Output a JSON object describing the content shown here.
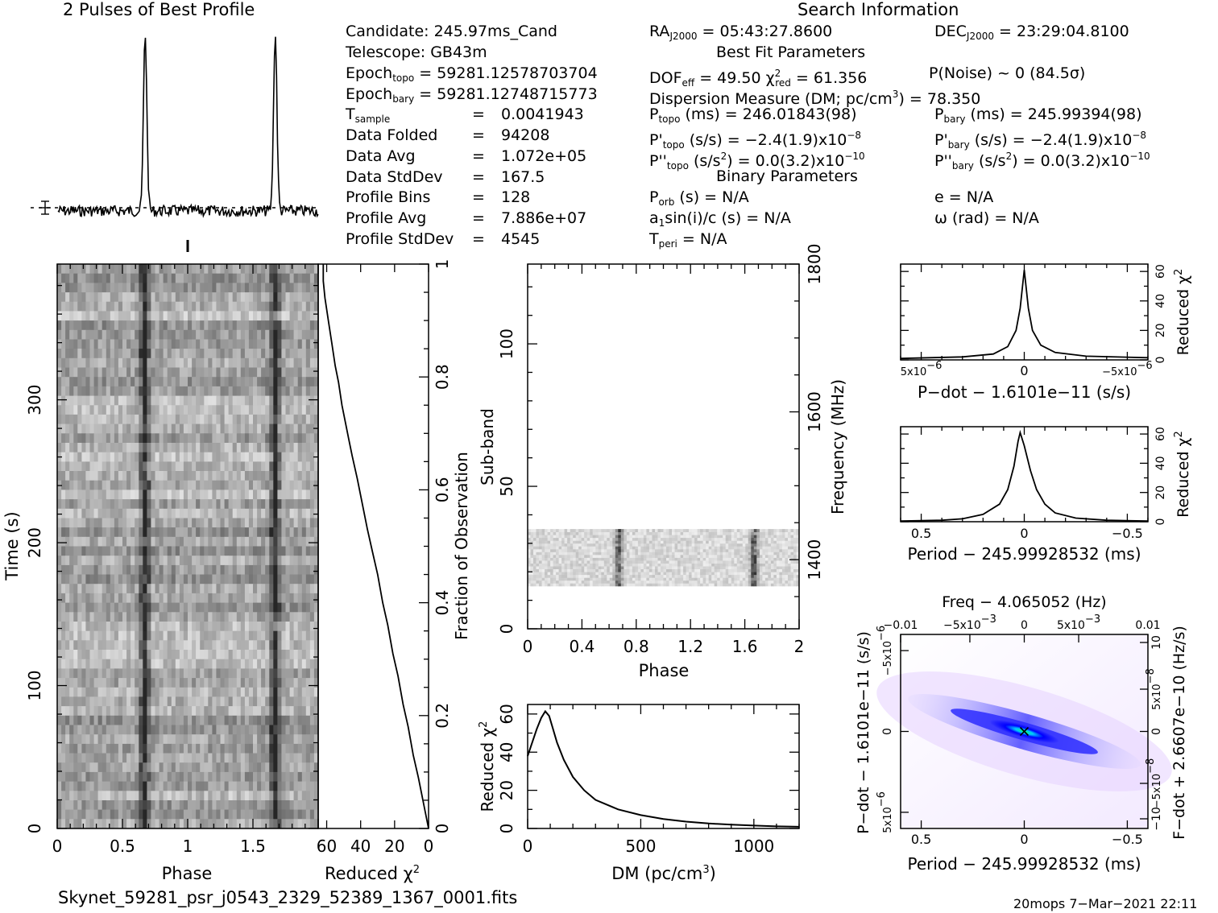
{
  "titles": {
    "profile": "2 Pulses of Best Profile",
    "search": "Search Information",
    "best_fit": "Best Fit Parameters",
    "binary": "Binary Parameters"
  },
  "header": {
    "candidate": "Candidate:  245.97ms_Cand",
    "telescope": "Telescope:  GB43m",
    "epoch_topo_l": "Epoch",
    "epoch_topo_s": "topo",
    "epoch_topo_v": " = 59281.12578703704",
    "epoch_bary_l": "Epoch",
    "epoch_bary_s": "bary",
    "epoch_bary_v": " = 59281.12748715773",
    "tsamp_l": "T",
    "tsamp_s": "sample",
    "tsamp_eq": "=",
    "tsamp_v": "0.0041943",
    "folded_l": "Data Folded",
    "folded_v": "94208",
    "davg_l": "Data Avg",
    "davg_v": "1.072e+05",
    "dstd_l": "Data StdDev",
    "dstd_v": "167.5",
    "bins_l": "Profile Bins",
    "bins_v": "128",
    "pavg_l": "Profile Avg",
    "pavg_v": "7.886e+07",
    "pstd_l": "Profile StdDev",
    "pstd_v": "4545",
    "eq": "=",
    "ra_l": "RA",
    "ra_s": "J2000",
    "ra_v": " = 05:43:27.8600",
    "dec_l": "DEC",
    "dec_s": "J2000",
    "dec_v": " = 23:29:04.8100",
    "dof_l": "DOF",
    "dof_s": "eff",
    "dof_v": " = 49.50  ",
    "chi_l": "χ",
    "chi_sup": "2",
    "chi_s": "red",
    "chi_v": " = 61.356",
    "pnoise": "P(Noise) ~ 0   (84.5σ)",
    "dm_line_a": "Dispersion Measure (DM; pc/cm",
    "dm_line_sup": "3",
    "dm_line_b": ") = 78.350",
    "ptopo_l": "P",
    "ptopo_s": "topo",
    "ptopo_v": " (ms) =  246.01843(98)",
    "pbary_l": "P",
    "pbary_s": "bary",
    "pbary_v": " (ms) =  245.99394(98)",
    "pdtopo_l": "P'",
    "pdtopo_s": "topo",
    "pdtopo_v": " (s/s) = −2.4(1.9)x10",
    "pdtopo_e": "−8",
    "pdbary_l": "P'",
    "pdbary_s": "bary",
    "pdbary_v": " (s/s) = −2.4(1.9)x10",
    "pdbary_e": "−8",
    "pddtopo_l": "P''",
    "pddtopo_s": "topo",
    "pddtopo_v": " (s/s",
    "pddtopo_sq": "2",
    "pddtopo_w": ") = 0.0(3.2)x10",
    "pddtopo_e": "−10",
    "pddbary_l": "P''",
    "pddbary_s": "bary",
    "pddbary_v": " (s/s",
    "pddbary_sq": "2",
    "pddbary_w": ") = 0.0(3.2)x10",
    "pddbary_e": "−10",
    "porb_l": "P",
    "porb_s": "orb",
    "porb_v": " (s) = N/A",
    "ecc": "e = N/A",
    "a1_a": "a",
    "a1_s": "1",
    "a1_b": "sin(i)/c (s) = N/A",
    "omega": "ω (rad) = N/A",
    "tperi_l": "T",
    "tperi_s": "peri",
    "tperi_v": " = N/A"
  },
  "footer": {
    "filename": "Skynet_59281_psr_j0543_2329_52389_1367_0001.fits",
    "stamp": "20mops  7−Mar−2021 22:11"
  },
  "colors": {
    "ink": "#000000",
    "bg": "#ffffff",
    "grey_min": "#ffffff",
    "grey_max": "#000000",
    "map_low": "#ffffff",
    "map_mid": "#0000ff",
    "map_high": "#00ff00"
  },
  "chart_data": [
    {
      "id": "profile",
      "type": "line",
      "title": "2 Pulses of Best Profile",
      "x_range": [
        0,
        2
      ],
      "peaks_at_phase": [
        0.67,
        1.67
      ],
      "note_errorbar": true
    },
    {
      "id": "time_phase",
      "type": "heatmap",
      "xlabel": "Phase",
      "ylabel": "Time (s)",
      "x_range": [
        0,
        2
      ],
      "y_range": [
        0,
        395
      ],
      "x_ticks": [
        "0",
        "0.5",
        "1",
        "1.5"
      ],
      "y_ticks": [
        "0",
        "100",
        "200",
        "300"
      ],
      "pulse_phases": [
        0.67,
        1.67
      ]
    },
    {
      "id": "chi_vs_time",
      "type": "line",
      "xlabel": "Reduced χ",
      "xlabel_sup": "2",
      "ylabel": "Fraction of Observation",
      "x_range": [
        65,
        0
      ],
      "y_range": [
        0,
        1
      ],
      "x_ticks": [
        "60",
        "40",
        "20",
        "0"
      ],
      "y_ticks": [
        "0",
        "0.2",
        "0.4",
        "0.6",
        "0.8",
        "1"
      ],
      "points": [
        [
          0,
          0
        ],
        [
          2,
          0.03
        ],
        [
          4,
          0.06
        ],
        [
          6,
          0.09
        ],
        [
          9,
          0.13
        ],
        [
          12,
          0.18
        ],
        [
          15,
          0.22
        ],
        [
          18,
          0.27
        ],
        [
          21,
          0.31
        ],
        [
          24,
          0.36
        ],
        [
          27,
          0.4
        ],
        [
          30,
          0.45
        ],
        [
          33,
          0.49
        ],
        [
          36,
          0.53
        ],
        [
          38,
          0.56
        ],
        [
          40,
          0.59
        ],
        [
          42,
          0.62
        ],
        [
          45,
          0.66
        ],
        [
          47,
          0.69
        ],
        [
          49,
          0.72
        ],
        [
          51,
          0.75
        ],
        [
          53,
          0.79
        ],
        [
          55,
          0.82
        ],
        [
          57,
          0.86
        ],
        [
          59,
          0.9
        ],
        [
          61,
          0.94
        ],
        [
          62,
          0.97
        ],
        [
          62,
          1.0
        ]
      ]
    },
    {
      "id": "subband_phase",
      "type": "heatmap",
      "xlabel": "Phase",
      "ylabel": "Sub-band",
      "y2label": "Frequency (MHz)",
      "x_range": [
        0,
        2
      ],
      "y_range": [
        0,
        128
      ],
      "x_ticks": [
        "0",
        "0.4",
        "0.8",
        "1.2",
        "1.6",
        "2"
      ],
      "y_ticks": [
        "0",
        "50",
        "100"
      ],
      "y2_ticks": [
        "1400",
        "1600",
        "1800"
      ],
      "filled_subbands": [
        15,
        35
      ],
      "pulse_phases": [
        0.67,
        1.67
      ]
    },
    {
      "id": "dm_chi",
      "type": "line",
      "xlabel": "DM (pc/cm",
      "xlabel_sup": "3",
      "xlabel_end": ")",
      "ylabel": "Reduced χ",
      "ylabel_sup": "2",
      "x_range": [
        0,
        1200
      ],
      "y_range": [
        0,
        65
      ],
      "x_ticks": [
        "0",
        "500",
        "1000"
      ],
      "y_ticks": [
        "0",
        "20",
        "40",
        "60"
      ],
      "points": [
        [
          0,
          38
        ],
        [
          20,
          45
        ],
        [
          40,
          52
        ],
        [
          60,
          58
        ],
        [
          78,
          61.4
        ],
        [
          95,
          59
        ],
        [
          110,
          53
        ],
        [
          130,
          45
        ],
        [
          160,
          36
        ],
        [
          200,
          27
        ],
        [
          250,
          20
        ],
        [
          300,
          15
        ],
        [
          400,
          10
        ],
        [
          500,
          7
        ],
        [
          600,
          5
        ],
        [
          700,
          3.6
        ],
        [
          800,
          2.6
        ],
        [
          900,
          2
        ],
        [
          1000,
          1.5
        ],
        [
          1100,
          1.1
        ],
        [
          1200,
          0.9
        ]
      ]
    },
    {
      "id": "pdot_chi",
      "type": "line",
      "xlabel": "P−dot − 1.6101e−11 (s/s)",
      "ylabel": "Reduced χ",
      "ylabel_sup": "2",
      "x_range": [
        6e-06,
        -6e-06
      ],
      "y_range": [
        0,
        65
      ],
      "x_ticks": [
        "5x10",
        "0",
        "−5x10"
      ],
      "x_tick_exp": "−6",
      "y_ticks": [
        "0",
        "20",
        "40",
        "60"
      ],
      "points": [
        [
          6e-06,
          1
        ],
        [
          3e-06,
          2
        ],
        [
          1.5e-06,
          4
        ],
        [
          8e-07,
          9
        ],
        [
          4e-07,
          20
        ],
        [
          2e-07,
          35
        ],
        [
          0,
          61
        ],
        [
          -2e-07,
          35
        ],
        [
          -4e-07,
          20
        ],
        [
          -8e-07,
          10
        ],
        [
          -1.5e-06,
          5
        ],
        [
          -3e-06,
          2.5
        ],
        [
          -6e-06,
          1.5
        ]
      ]
    },
    {
      "id": "period_chi",
      "type": "line",
      "xlabel": "Period − 245.99928532 (ms)",
      "ylabel": "Reduced χ",
      "ylabel_sup": "2",
      "x_range": [
        0.6,
        -0.6
      ],
      "y_range": [
        0,
        65
      ],
      "x_ticks": [
        "0.5",
        "0",
        "−0.5"
      ],
      "y_ticks": [
        "0",
        "20",
        "40",
        "60"
      ],
      "points": [
        [
          0.6,
          0.5
        ],
        [
          0.4,
          1
        ],
        [
          0.3,
          2
        ],
        [
          0.2,
          5
        ],
        [
          0.12,
          12
        ],
        [
          0.08,
          22
        ],
        [
          0.05,
          38
        ],
        [
          0.03,
          55
        ],
        [
          0.02,
          61
        ],
        [
          0.0,
          52
        ],
        [
          -0.03,
          35
        ],
        [
          -0.06,
          22
        ],
        [
          -0.1,
          12
        ],
        [
          -0.15,
          6
        ],
        [
          -0.25,
          2.5
        ],
        [
          -0.4,
          1
        ],
        [
          -0.6,
          0.5
        ]
      ]
    },
    {
      "id": "p_pdot_map",
      "type": "heatmap",
      "title": "Freq − 4.065052 (Hz)",
      "xlabel": "Period − 245.99928532 (ms)",
      "ylabel": "P−dot − 1.6101e−11 (s/s)",
      "y2label": "F−dot + 2.6607e−10 (Hz/s)",
      "x_range": [
        0.6,
        -0.6
      ],
      "y_range": [
        6e-06,
        -6e-06
      ],
      "x_ticks": [
        "0.5",
        "0",
        "−0.5"
      ],
      "top_ticks": [
        "−0.01",
        "−5x10",
        "0",
        "5x10",
        "0.01"
      ],
      "top_exp": "−3",
      "left_ticks": [
        "5x10",
        "0",
        "−5x10"
      ],
      "left_exp": "−6",
      "right_ticks": [
        "−10",
        "−5x10",
        "0",
        "5x10",
        "10"
      ],
      "right_exp": "−8",
      "best": [
        0,
        0
      ]
    }
  ]
}
